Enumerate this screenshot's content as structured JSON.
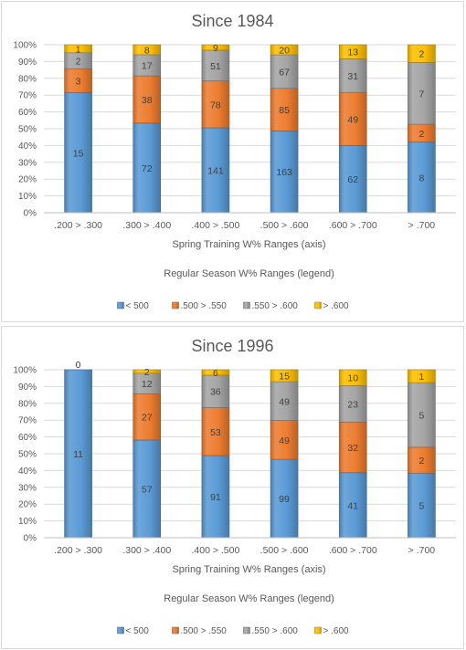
{
  "legend_heading": "Regular Season W% Ranges (legend)",
  "chart_data": [
    {
      "type": "bar",
      "stacked": "percent",
      "title": "Since 1984",
      "xlabel": "Spring Training W% Ranges (axis)",
      "ylabel": "",
      "ylim": [
        0,
        100
      ],
      "yticks": [
        "0%",
        "10%",
        "20%",
        "30%",
        "40%",
        "50%",
        "60%",
        "70%",
        "80%",
        "90%",
        "100%"
      ],
      "categories": [
        ".200 > .300",
        ".300 > .400",
        ".400 > .500",
        ".500 > .600",
        ".600 > .700",
        "> .700"
      ],
      "legend_position": "bottom",
      "series": [
        {
          "name": "< 500",
          "color": "#5b9bd5",
          "values": [
            15,
            72,
            141,
            163,
            62,
            8
          ]
        },
        {
          "name": ".500 > .550",
          "color": "#ed7d31",
          "values": [
            3,
            38,
            78,
            85,
            49,
            2
          ]
        },
        {
          "name": ".550 > .600",
          "color": "#a5a5a5",
          "values": [
            2,
            17,
            51,
            67,
            31,
            7
          ]
        },
        {
          "name": "> .600",
          "color": "#ffc000",
          "values": [
            1,
            8,
            9,
            20,
            13,
            2
          ]
        }
      ]
    },
    {
      "type": "bar",
      "stacked": "percent",
      "title": "Since 1996",
      "xlabel": "Spring Training W% Ranges (axis)",
      "ylabel": "",
      "ylim": [
        0,
        100
      ],
      "yticks": [
        "0%",
        "10%",
        "20%",
        "30%",
        "40%",
        "50%",
        "60%",
        "70%",
        "80%",
        "90%",
        "100%"
      ],
      "categories": [
        ".200 > .300",
        ".300 > .400",
        ".400 > .500",
        ".500 > .600",
        ".600 > .700",
        "> .700"
      ],
      "legend_position": "bottom",
      "series": [
        {
          "name": "< 500",
          "color": "#5b9bd5",
          "values": [
            11,
            57,
            91,
            99,
            41,
            5
          ]
        },
        {
          "name": ".500 > .550",
          "color": "#ed7d31",
          "values": [
            0,
            27,
            53,
            49,
            32,
            2
          ]
        },
        {
          "name": ".550 > .600",
          "color": "#a5a5a5",
          "values": [
            0,
            12,
            36,
            49,
            23,
            5
          ]
        },
        {
          "name": "> .600",
          "color": "#ffc000",
          "values": [
            0,
            2,
            6,
            15,
            10,
            1
          ]
        }
      ]
    }
  ]
}
